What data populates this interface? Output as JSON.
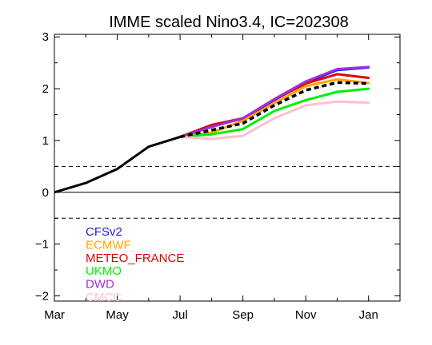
{
  "chart_data": {
    "type": "line",
    "title": "IMME scaled Nino3.4, IC=202308",
    "xlabel": "",
    "ylabel": "",
    "x_tick_labels": [
      "Mar",
      "May",
      "Jul",
      "Sep",
      "Nov",
      "Jan"
    ],
    "x_tick_positions": [
      0,
      2,
      4,
      6,
      8,
      10
    ],
    "xlim": [
      0,
      11
    ],
    "y_tick_labels": [
      "−2",
      "−1",
      "0",
      "1",
      "2",
      "3"
    ],
    "y_tick_values": [
      -2,
      -1,
      0,
      1,
      2,
      3
    ],
    "ylim": [
      -2.1,
      3.05
    ],
    "grid": false,
    "reference_lines": [
      {
        "y": 0,
        "style": "solid"
      },
      {
        "y": 0.5,
        "style": "dashed"
      },
      {
        "y": -0.5,
        "style": "dashed"
      }
    ],
    "observed": {
      "x": [
        0,
        1,
        2,
        3,
        4
      ],
      "values": [
        0.0,
        0.18,
        0.45,
        0.88,
        1.07
      ],
      "color": "#000000"
    },
    "series": [
      {
        "name": "CFSv2",
        "color": "#1c1ce0",
        "x": [
          4,
          5,
          6,
          7,
          8,
          9,
          10
        ],
        "values": [
          1.07,
          1.28,
          1.42,
          1.78,
          2.12,
          2.36,
          2.41
        ]
      },
      {
        "name": "ECMWF",
        "color": "#ffa500",
        "x": [
          4,
          5,
          6,
          7,
          8,
          9,
          10
        ],
        "values": [
          1.07,
          1.15,
          1.38,
          1.72,
          2.05,
          2.18,
          2.11
        ]
      },
      {
        "name": "METEO_FRANCE",
        "color": "#e00000",
        "x": [
          4,
          5,
          6,
          7,
          8,
          9,
          10
        ],
        "values": [
          1.07,
          1.3,
          1.43,
          1.79,
          2.1,
          2.28,
          2.21
        ]
      },
      {
        "name": "UKMO",
        "color": "#00ee00",
        "x": [
          4,
          5,
          6,
          7,
          8,
          9,
          10
        ],
        "values": [
          1.07,
          1.12,
          1.22,
          1.57,
          1.78,
          1.94,
          2.0
        ]
      },
      {
        "name": "DWD",
        "color": "#9b30e6",
        "x": [
          4,
          5,
          6,
          7,
          8,
          9,
          10
        ],
        "values": [
          1.07,
          1.26,
          1.43,
          1.8,
          2.14,
          2.38,
          2.42
        ]
      },
      {
        "name": "CMCC",
        "color": "#ffc0cb",
        "x": [
          4,
          5,
          6,
          7,
          8,
          9,
          10
        ],
        "values": [
          1.07,
          1.03,
          1.09,
          1.43,
          1.68,
          1.75,
          1.73
        ]
      }
    ],
    "ensemble_mean": {
      "style": "dashed",
      "color": "#000000",
      "x": [
        4,
        5,
        6,
        7,
        8,
        9,
        10
      ],
      "values": [
        1.07,
        1.2,
        1.33,
        1.68,
        1.97,
        2.12,
        2.1
      ]
    },
    "legend_position": "bottom-left"
  }
}
